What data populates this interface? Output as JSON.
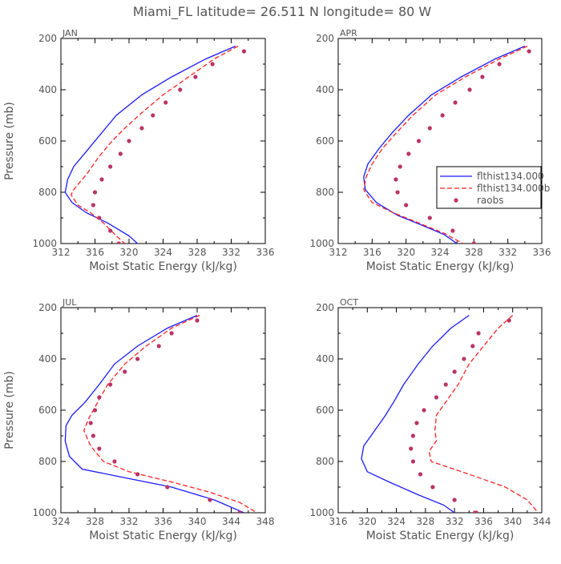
{
  "figure": {
    "title": "Miami_FL   latitude= 26.511 N longitude= 80 W",
    "legend": {
      "placement": "right side of APR panel",
      "entries": [
        "flthist134.000",
        "flthist134.000b",
        "raobs"
      ]
    }
  },
  "chart_data": [
    {
      "type": "line",
      "panel_label": "JAN",
      "title": "JAN",
      "xlabel": "Moist Static Energy (kJ/kg)",
      "ylabel": "Pressure (mb)",
      "xlim": [
        312,
        336
      ],
      "ylim": [
        200,
        1000
      ],
      "y_inverted": true,
      "xticks": [
        "312",
        "316",
        "320",
        "324",
        "328",
        "332",
        "336"
      ],
      "yticks": [
        "200",
        "400",
        "600",
        "800",
        "1000"
      ],
      "series": [
        {
          "name": "flthist134.000",
          "style": "solid",
          "color": "#1a1aff",
          "x": [
            332.5,
            329,
            325,
            321.5,
            318.5,
            316.5,
            315,
            313.5,
            312.8,
            312.5,
            313.3,
            315,
            317.5,
            320,
            321.5
          ],
          "y": [
            230,
            280,
            350,
            420,
            500,
            580,
            640,
            700,
            750,
            800,
            840,
            880,
            920,
            970,
            1015
          ]
        },
        {
          "name": "flthist134.000b",
          "style": "dashed",
          "color": "#ff2222",
          "x": [
            332.8,
            330,
            327,
            324,
            321.5,
            319.5,
            318,
            316.5,
            315,
            313.5,
            313.2,
            314,
            315.5,
            317,
            318.5,
            319.5
          ],
          "y": [
            230,
            280,
            350,
            420,
            490,
            550,
            600,
            660,
            730,
            790,
            810,
            850,
            880,
            920,
            970,
            1000
          ]
        },
        {
          "name": "raobs",
          "style": "dots",
          "color": "#bb3366",
          "x": [
            333.5,
            329.8,
            327.8,
            326,
            324.3,
            322.8,
            321.5,
            320,
            319,
            317.8,
            316.8,
            316,
            315.8,
            316.5,
            317.8,
            318.8
          ],
          "y": [
            250,
            300,
            350,
            400,
            450,
            500,
            550,
            600,
            650,
            700,
            750,
            800,
            850,
            900,
            950,
            1000
          ]
        }
      ]
    },
    {
      "type": "line",
      "panel_label": "APR",
      "title": "APR",
      "xlabel": "Moist Static Energy (kJ/kg)",
      "ylabel": "",
      "xlim": [
        312,
        336
      ],
      "ylim": [
        200,
        1000
      ],
      "y_inverted": true,
      "xticks": [
        "312",
        "316",
        "320",
        "324",
        "328",
        "332",
        "336"
      ],
      "yticks": [
        "200",
        "400",
        "600",
        "800",
        "1000"
      ],
      "series": [
        {
          "name": "flthist134.000",
          "style": "solid",
          "color": "#1a1aff",
          "x": [
            334,
            330.5,
            326.5,
            323,
            320.3,
            318.3,
            316.8,
            315.5,
            315,
            315.2,
            316.5,
            319,
            322,
            324.5,
            326
          ],
          "y": [
            230,
            280,
            350,
            420,
            500,
            570,
            630,
            690,
            740,
            790,
            840,
            890,
            930,
            965,
            1000
          ]
        },
        {
          "name": "flthist134.000b",
          "style": "dashed",
          "color": "#ff2222",
          "x": [
            334.3,
            331,
            327,
            323.5,
            320.8,
            318.8,
            317.2,
            316,
            315.3,
            315,
            316,
            318.5,
            321.5,
            324.5,
            326.7
          ],
          "y": [
            230,
            280,
            350,
            420,
            500,
            570,
            630,
            690,
            740,
            790,
            840,
            880,
            920,
            960,
            1000
          ]
        },
        {
          "name": "raobs",
          "style": "dots",
          "color": "#bb3366",
          "x": [
            334.5,
            331,
            329,
            327.5,
            325.8,
            324.3,
            322.8,
            321.5,
            320.3,
            319.3,
            318.8,
            319,
            320,
            322.8,
            325.5,
            328
          ],
          "y": [
            250,
            300,
            350,
            400,
            450,
            500,
            550,
            600,
            650,
            700,
            750,
            800,
            850,
            900,
            950,
            1000
          ]
        }
      ]
    },
    {
      "type": "line",
      "panel_label": "JUL",
      "title": "JUL",
      "xlabel": "Moist Static Energy (kJ/kg)",
      "ylabel": "Pressure (mb)",
      "xlim": [
        324,
        348
      ],
      "ylim": [
        200,
        1000
      ],
      "y_inverted": true,
      "xticks": [
        "324",
        "328",
        "332",
        "336",
        "340",
        "344",
        "348"
      ],
      "yticks": [
        "200",
        "400",
        "600",
        "800",
        "1000"
      ],
      "series": [
        {
          "name": "flthist134.000",
          "style": "solid",
          "color": "#1a1aff",
          "x": [
            340,
            336.5,
            333,
            330.3,
            328.5,
            326.8,
            325.3,
            324.6,
            324.5,
            325,
            326.5,
            331,
            337,
            342,
            345.5
          ],
          "y": [
            230,
            280,
            350,
            420,
            500,
            570,
            620,
            660,
            720,
            780,
            830,
            860,
            900,
            950,
            1000
          ]
        },
        {
          "name": "flthist134.000b",
          "style": "dashed",
          "color": "#ff2222",
          "x": [
            340.3,
            337,
            334,
            331.5,
            329.5,
            328.3,
            327.3,
            326.7,
            327.5,
            329,
            332,
            337,
            341.5,
            345,
            347
          ],
          "y": [
            230,
            280,
            350,
            420,
            500,
            570,
            630,
            680,
            740,
            800,
            840,
            880,
            920,
            960,
            1000
          ]
        },
        {
          "name": "raobs",
          "style": "dots",
          "color": "#bb3366",
          "x": [
            340,
            337,
            335.5,
            333,
            331.5,
            329.8,
            328.5,
            328,
            327.5,
            327.8,
            328.5,
            330.3,
            333,
            336.5,
            341.5,
            345
          ],
          "y": [
            250,
            300,
            350,
            400,
            450,
            500,
            550,
            600,
            650,
            700,
            750,
            800,
            850,
            900,
            950,
            1000
          ]
        }
      ]
    },
    {
      "type": "line",
      "panel_label": "OCT",
      "title": "OCT",
      "xlabel": "Moist Static Energy (kJ/kg)",
      "ylabel": "",
      "xlim": [
        316,
        344
      ],
      "ylim": [
        200,
        1000
      ],
      "y_inverted": true,
      "xticks": [
        "316",
        "320",
        "324",
        "328",
        "332",
        "336",
        "340",
        "344"
      ],
      "yticks": [
        "200",
        "400",
        "600",
        "800",
        "1000"
      ],
      "series": [
        {
          "name": "flthist134.000",
          "style": "solid",
          "color": "#1a1aff",
          "x": [
            334,
            331.5,
            329,
            327,
            325,
            323.8,
            322.5,
            321,
            319.5,
            319.2,
            320,
            323,
            327,
            330.5,
            332
          ],
          "y": [
            230,
            280,
            350,
            420,
            500,
            560,
            620,
            680,
            740,
            790,
            840,
            880,
            930,
            970,
            1000
          ]
        },
        {
          "name": "flthist134.000b",
          "style": "dashed",
          "color": "#ff2222",
          "x": [
            340,
            338,
            336,
            334,
            332.5,
            331,
            329.5,
            329.3,
            329.5,
            328.5,
            328.8,
            334,
            339,
            342,
            343.5
          ],
          "y": [
            230,
            280,
            350,
            420,
            500,
            560,
            620,
            680,
            720,
            760,
            800,
            850,
            900,
            950,
            1000
          ]
        },
        {
          "name": "raobs",
          "style": "dots",
          "color": "#bb3366",
          "x": [
            339.5,
            335.3,
            334.5,
            333.3,
            332,
            330.8,
            329.5,
            327.8,
            326.8,
            326.3,
            326,
            326.3,
            327.3,
            329,
            332,
            334.8,
            335
          ],
          "y": [
            250,
            300,
            350,
            400,
            450,
            500,
            550,
            600,
            650,
            700,
            750,
            800,
            850,
            900,
            950,
            1000,
            1000
          ]
        }
      ]
    }
  ]
}
